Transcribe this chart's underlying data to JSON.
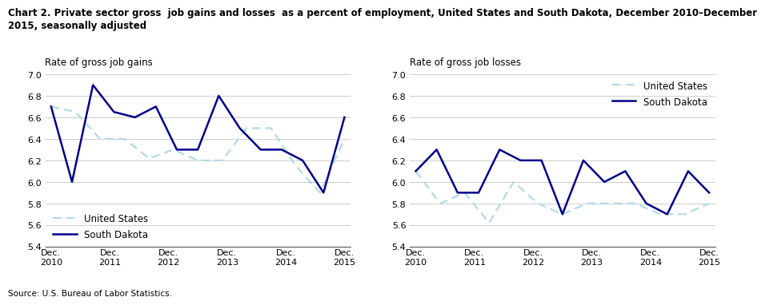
{
  "title": "Chart 2. Private sector gross  job gains and losses  as a percent of employment, United States and South Dakota, December 2010–December\n2015, seasonally adjusted",
  "source": "Source: U.S. Bureau of Labor Statistics.",
  "left_ylabel": "Rate of gross job gains",
  "right_ylabel": "Rate of gross job losses",
  "xlabels": [
    "Dec.\n2010",
    "Dec.\n2011",
    "Dec.\n2012",
    "Dec.\n2013",
    "Dec.\n2014",
    "Dec.\n2015"
  ],
  "ylim": [
    5.4,
    7.0
  ],
  "yticks": [
    5.4,
    5.6,
    5.8,
    6.0,
    6.2,
    6.4,
    6.6,
    6.8,
    7.0
  ],
  "gains_us_x": [
    0,
    0.417,
    0.833,
    1.25,
    1.667,
    2.083,
    2.5,
    2.917,
    3.333,
    3.75,
    4.167,
    4.583,
    5.0
  ],
  "gains_us_y": [
    6.7,
    6.65,
    6.4,
    6.4,
    6.22,
    6.3,
    6.2,
    6.2,
    6.5,
    6.5,
    6.15,
    5.9,
    6.4
  ],
  "gains_sd_x": [
    0,
    0.357,
    0.714,
    1.071,
    1.429,
    1.786,
    2.143,
    2.5,
    2.857,
    3.214,
    3.571,
    3.929,
    4.286,
    4.643,
    5.0
  ],
  "gains_sd_y": [
    6.7,
    6.0,
    6.9,
    6.65,
    6.6,
    6.7,
    6.3,
    6.3,
    6.8,
    6.5,
    6.3,
    6.3,
    6.2,
    5.9,
    6.6
  ],
  "losses_us_x": [
    0,
    0.417,
    0.833,
    1.25,
    1.667,
    2.083,
    2.5,
    2.917,
    3.333,
    3.75,
    4.167,
    4.583,
    5.0
  ],
  "losses_us_y": [
    6.1,
    5.8,
    5.9,
    5.62,
    6.0,
    5.8,
    5.7,
    5.8,
    5.8,
    5.8,
    5.7,
    5.7,
    5.8
  ],
  "losses_sd_x": [
    0,
    0.357,
    0.714,
    1.071,
    1.429,
    1.786,
    2.143,
    2.5,
    2.857,
    3.214,
    3.571,
    3.929,
    4.286,
    4.643,
    5.0
  ],
  "losses_sd_y": [
    6.1,
    6.3,
    5.9,
    5.9,
    6.3,
    6.2,
    6.2,
    5.7,
    6.2,
    6.0,
    6.1,
    5.8,
    5.7,
    6.1,
    5.9
  ],
  "us_color": "#add8e6",
  "sd_color": "#00008b",
  "legend_us": "United States",
  "legend_sd": "South Dakota"
}
